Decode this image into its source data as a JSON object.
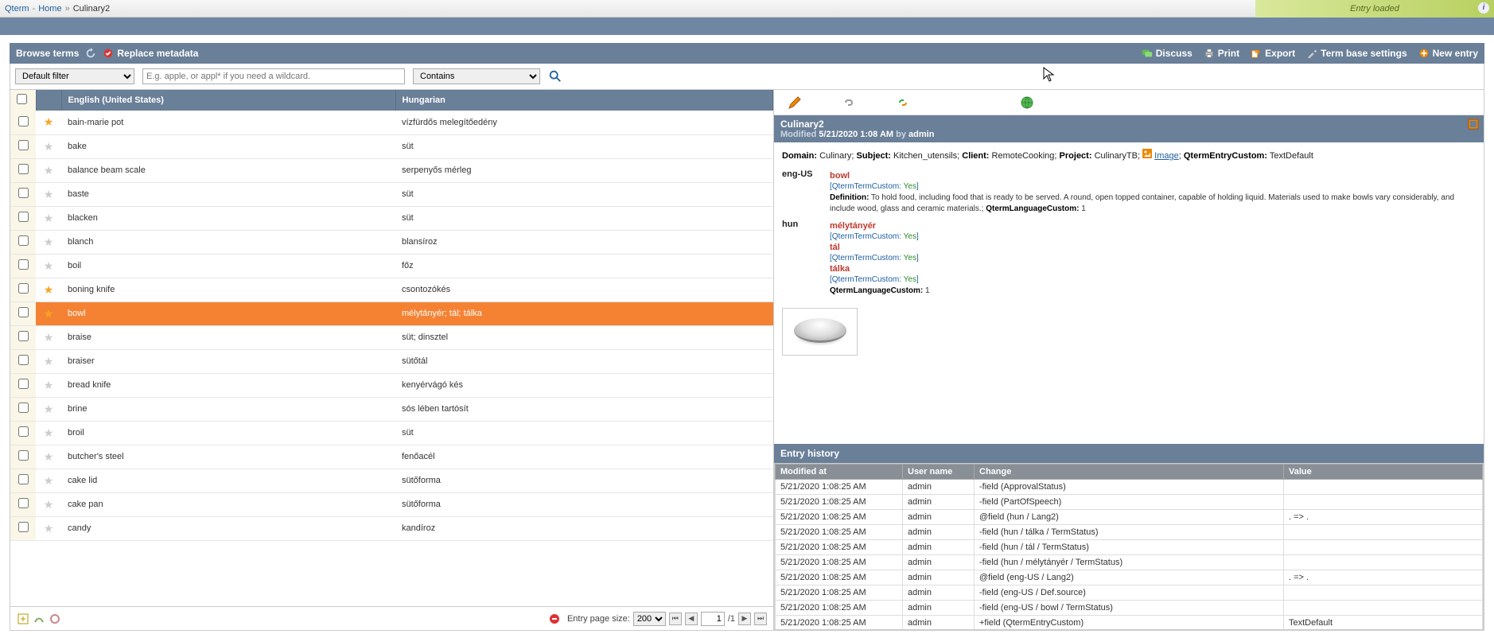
{
  "breadcrumb": {
    "app": "Qterm",
    "home": "Home",
    "current": "Culinary2"
  },
  "topstatus": "Entry loaded",
  "panel": {
    "title": "Browse terms",
    "replace": "Replace metadata",
    "actions": {
      "discuss": "Discuss",
      "print": "Print",
      "export": "Export",
      "settings": "Term base settings",
      "newentry": "New entry"
    }
  },
  "filter": {
    "default": "Default filter",
    "placeholder": "E.g. apple, or appl* if you need a wildcard.",
    "match": "Contains"
  },
  "grid": {
    "col1": "English (United States)",
    "col2": "Hungarian",
    "rows": [
      {
        "chk": false,
        "star": true,
        "en": "bain-marie pot",
        "hu": "vízfürdős melegítőedény",
        "sel": false
      },
      {
        "chk": false,
        "star": false,
        "en": "bake",
        "hu": "süt",
        "sel": false
      },
      {
        "chk": false,
        "star": false,
        "en": "balance beam scale",
        "hu": "serpenyős mérleg",
        "sel": false
      },
      {
        "chk": false,
        "star": false,
        "en": "baste",
        "hu": "süt",
        "sel": false
      },
      {
        "chk": false,
        "star": false,
        "en": "blacken",
        "hu": "süt",
        "sel": false
      },
      {
        "chk": false,
        "star": false,
        "en": "blanch",
        "hu": "blansíroz",
        "sel": false
      },
      {
        "chk": false,
        "star": false,
        "en": "boil",
        "hu": "főz",
        "sel": false
      },
      {
        "chk": false,
        "star": true,
        "en": "boning knife",
        "hu": "csontozókés",
        "sel": false
      },
      {
        "chk": false,
        "star": true,
        "en": "bowl",
        "hu": "mélytányér; tál; tálka",
        "sel": true
      },
      {
        "chk": false,
        "star": false,
        "en": "braise",
        "hu": "süt; dinsztel",
        "sel": false
      },
      {
        "chk": false,
        "star": false,
        "en": "braiser",
        "hu": "sütőtál",
        "sel": false
      },
      {
        "chk": false,
        "star": false,
        "en": "bread knife",
        "hu": "kenyérvágó kés",
        "sel": false
      },
      {
        "chk": false,
        "star": false,
        "en": "brine",
        "hu": "sós lében tartósít",
        "sel": false
      },
      {
        "chk": false,
        "star": false,
        "en": "broil",
        "hu": "süt",
        "sel": false
      },
      {
        "chk": false,
        "star": false,
        "en": "butcher's steel",
        "hu": "fenőacél",
        "sel": false
      },
      {
        "chk": false,
        "star": false,
        "en": "cake lid",
        "hu": "sütőforma",
        "sel": false
      },
      {
        "chk": false,
        "star": false,
        "en": "cake pan",
        "hu": "sütőforma",
        "sel": false
      },
      {
        "chk": false,
        "star": false,
        "en": "candy",
        "hu": "kandíroz",
        "sel": false
      }
    ]
  },
  "pager": {
    "label": "Entry page size:",
    "size": "200",
    "page": "1",
    "total": "/1"
  },
  "entry": {
    "title": "Culinary2",
    "mod_label": "Modified",
    "mod_date": "5/21/2020 1:08 AM",
    "by": "by",
    "user": "admin",
    "meta": {
      "domain_l": "Domain:",
      "domain_v": "Culinary",
      "subject_l": "Subject:",
      "subject_v": "Kitchen_utensils",
      "client_l": "Client:",
      "client_v": "RemoteCooking",
      "project_l": "Project:",
      "project_v": "CulinaryTB",
      "image_l": "Image",
      "qec_l": "QtermEntryCustom:",
      "qec_v": "TextDefault"
    },
    "eng": {
      "code": "eng-US",
      "term": "bowl",
      "tc_l": "[QtermTermCustom:",
      "tc_v": "Yes",
      "tc_e": "]",
      "def_l": "Definition:",
      "def_v": "To hold food, including food that is ready to be served. A round, open topped container, capable of holding liquid. Materials used to make bowls vary considerably, and include wood, glass and ceramic materials.;",
      "qlc_l": "QtermLanguageCustom:",
      "qlc_v": "1"
    },
    "hun": {
      "code": "hun",
      "t1": "mélytányér",
      "t2": "tál",
      "t3": "tálka",
      "tc_l": "[QtermTermCustom:",
      "tc_v": "Yes",
      "tc_e": "]",
      "qlc_l": "QtermLanguageCustom:",
      "qlc_v": "1"
    }
  },
  "history": {
    "title": "Entry history",
    "cols": {
      "c1": "Modified at",
      "c2": "User name",
      "c3": "Change",
      "c4": "Value"
    },
    "rows": [
      {
        "d": "5/21/2020 1:08:25 AM",
        "u": "admin",
        "c": "-field (ApprovalStatus)",
        "v": ""
      },
      {
        "d": "5/21/2020 1:08:25 AM",
        "u": "admin",
        "c": "-field (PartOfSpeech)",
        "v": ""
      },
      {
        "d": "5/21/2020 1:08:25 AM",
        "u": "admin",
        "c": "@field (hun / Lang2)",
        "v": ". => ."
      },
      {
        "d": "5/21/2020 1:08:25 AM",
        "u": "admin",
        "c": "-field (hun / tálka / TermStatus)",
        "v": ""
      },
      {
        "d": "5/21/2020 1:08:25 AM",
        "u": "admin",
        "c": "-field (hun / tál / TermStatus)",
        "v": ""
      },
      {
        "d": "5/21/2020 1:08:25 AM",
        "u": "admin",
        "c": "-field (hun / mélytányér / TermStatus)",
        "v": ""
      },
      {
        "d": "5/21/2020 1:08:25 AM",
        "u": "admin",
        "c": "@field (eng-US / Lang2)",
        "v": ". => ."
      },
      {
        "d": "5/21/2020 1:08:25 AM",
        "u": "admin",
        "c": "-field (eng-US / Def.source)",
        "v": ""
      },
      {
        "d": "5/21/2020 1:08:25 AM",
        "u": "admin",
        "c": "-field (eng-US / bowl / TermStatus)",
        "v": ""
      },
      {
        "d": "5/21/2020 1:08:25 AM",
        "u": "admin",
        "c": "+field (QtermEntryCustom)",
        "v": "TextDefault"
      }
    ]
  }
}
